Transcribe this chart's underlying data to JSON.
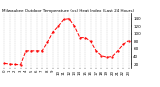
{
  "title": "Milwaukee Outdoor Temperature (vs) Heat Index (Last 24 Hours)",
  "line_color": "#ff0000",
  "background_color": "#ffffff",
  "grid_color": "#aaaaaa",
  "x_values": [
    0,
    1,
    2,
    3,
    4,
    5,
    6,
    7,
    8,
    9,
    10,
    11,
    12,
    13,
    14,
    15,
    16,
    17,
    18,
    19,
    20,
    21,
    22,
    23
  ],
  "y_values": [
    22,
    20,
    19,
    18,
    55,
    55,
    55,
    55,
    78,
    105,
    120,
    138,
    140,
    120,
    90,
    90,
    80,
    55,
    42,
    38,
    40,
    55,
    72,
    82
  ],
  "ylim": [
    10,
    155
  ],
  "yticks": [
    20,
    40,
    60,
    80,
    100,
    120,
    140
  ],
  "ylabel_fontsize": 3.0,
  "title_fontsize": 3.0,
  "xlabel_fontsize": 2.8,
  "line_width": 0.7,
  "line_style": "--",
  "marker": ".",
  "marker_size": 1.2,
  "figsize": [
    1.6,
    0.87
  ],
  "dpi": 100
}
